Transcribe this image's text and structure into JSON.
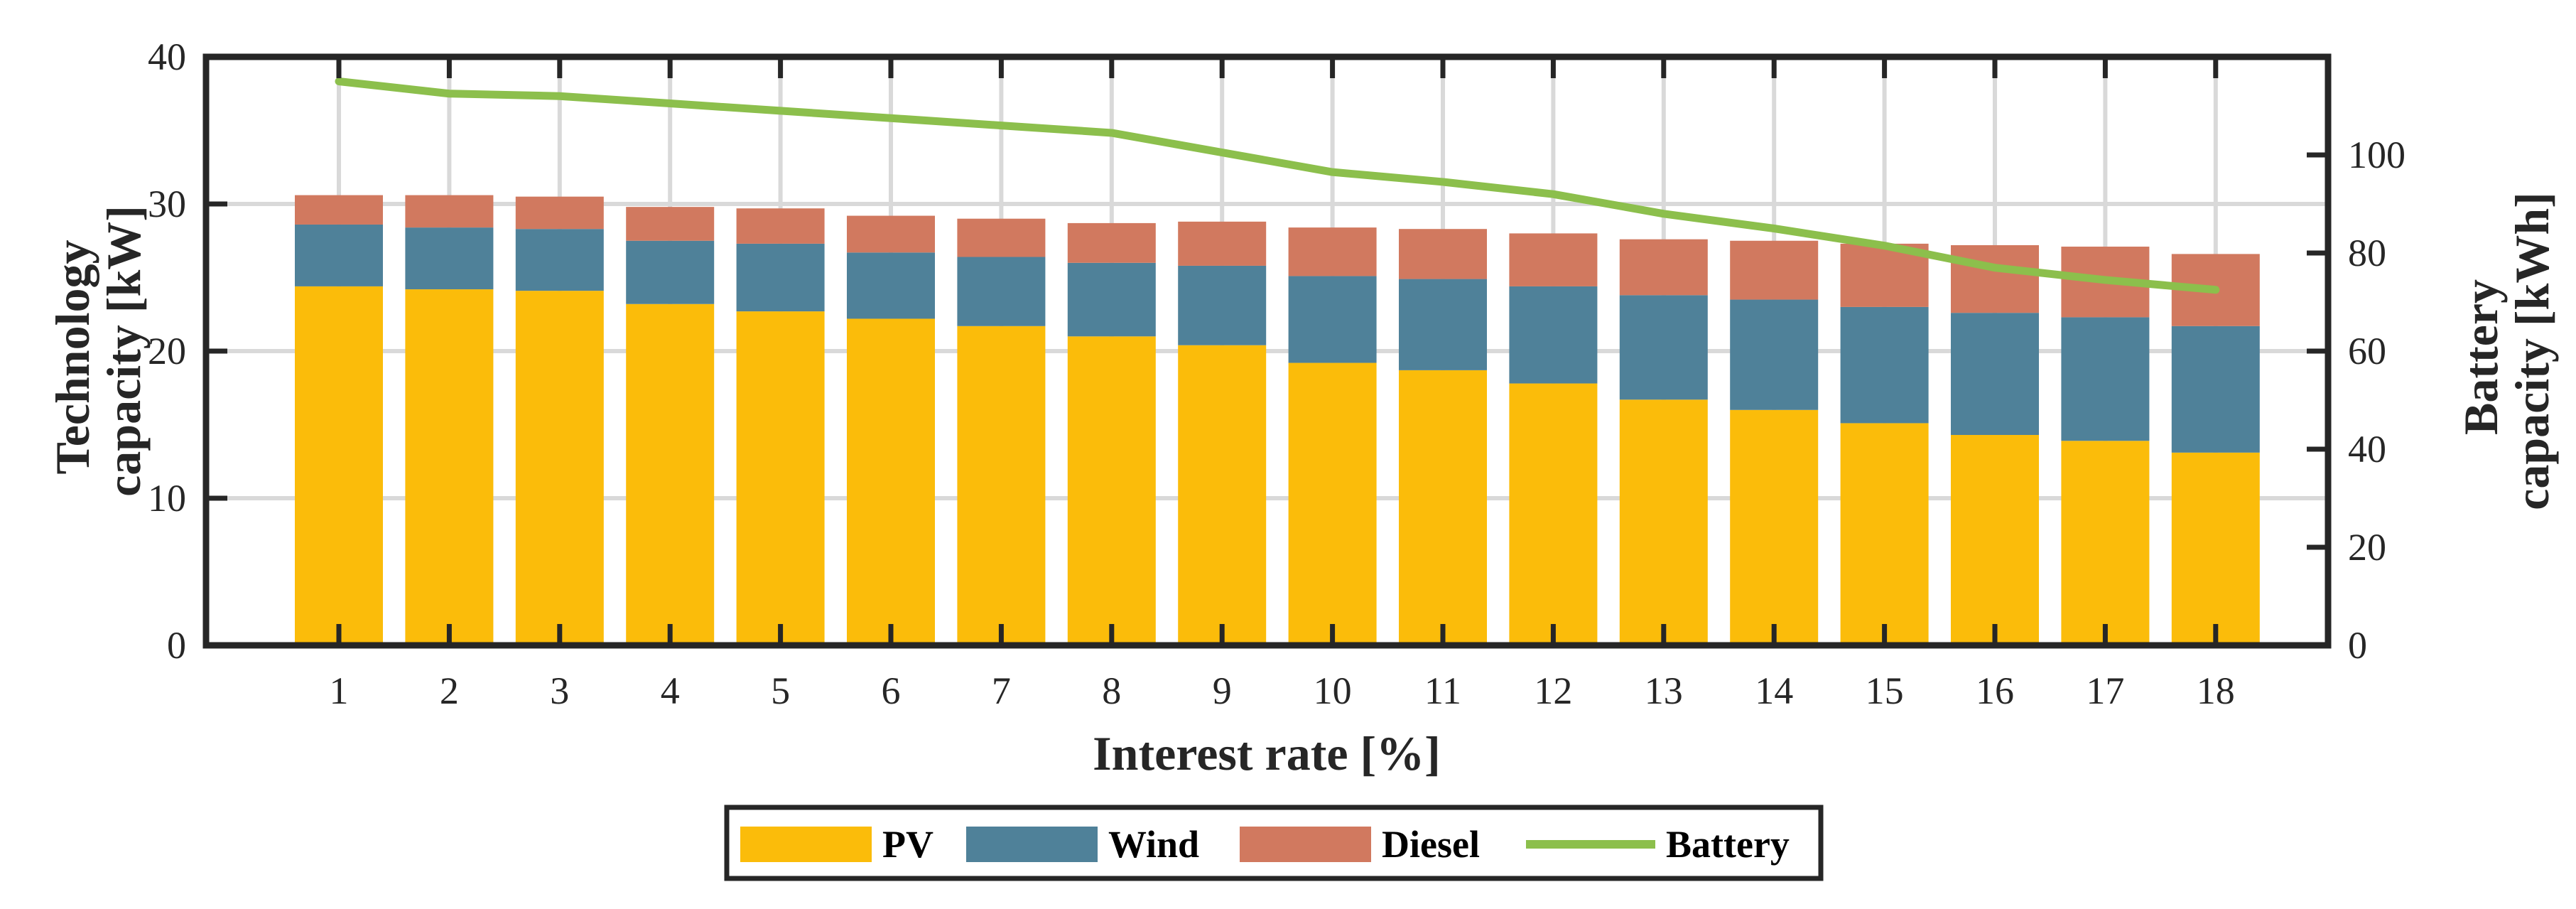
{
  "chart_data": {
    "type": "bar",
    "stacked": true,
    "title": "",
    "categories": [
      "1",
      "2",
      "3",
      "4",
      "5",
      "6",
      "7",
      "8",
      "9",
      "10",
      "11",
      "12",
      "13",
      "14",
      "15",
      "16",
      "17",
      "18"
    ],
    "xlabel": "Interest rate [%]",
    "ylabel_lines": [
      "Technology",
      "capacity [kW]"
    ],
    "y2label_lines": [
      "Battery",
      "capacity [kWh]"
    ],
    "ylim": [
      0,
      40
    ],
    "y2lim": [
      0,
      120
    ],
    "yticks": [
      0,
      10,
      20,
      30,
      40
    ],
    "y2ticks": [
      0,
      20,
      40,
      60,
      80,
      100
    ],
    "ytick_labels": [
      "0",
      "10",
      "20",
      "30",
      "40"
    ],
    "y2tick_labels": [
      "0",
      "20",
      "40",
      "60",
      "80",
      "100"
    ],
    "grid": true,
    "legend_position": "bottom-center",
    "series": [
      {
        "name": "PV",
        "axis": "left",
        "kind": "bar",
        "color": "#FBBC0A",
        "values": [
          24.4,
          24.2,
          24.1,
          23.2,
          22.7,
          22.2,
          21.7,
          21.0,
          20.4,
          19.2,
          18.7,
          17.8,
          16.7,
          16.0,
          15.1,
          14.3,
          13.9,
          13.1
        ]
      },
      {
        "name": "Wind",
        "axis": "left",
        "kind": "bar",
        "color": "#4F8199",
        "values": [
          4.2,
          4.2,
          4.2,
          4.3,
          4.6,
          4.5,
          4.7,
          5.0,
          5.4,
          5.9,
          6.2,
          6.6,
          7.1,
          7.5,
          7.9,
          8.3,
          8.4,
          8.6
        ]
      },
      {
        "name": "Diesel",
        "axis": "left",
        "kind": "bar",
        "color": "#D1795F",
        "values": [
          2.0,
          2.2,
          2.2,
          2.3,
          2.4,
          2.5,
          2.6,
          2.7,
          3.0,
          3.3,
          3.4,
          3.6,
          3.8,
          4.0,
          4.3,
          4.6,
          4.8,
          4.9
        ]
      },
      {
        "name": "Battery",
        "axis": "right",
        "kind": "line",
        "color": "#8CBF4C",
        "values": [
          115,
          112.5,
          112,
          110.5,
          109,
          107.5,
          106,
          104.5,
          100.5,
          96.5,
          94.5,
          92,
          88,
          85,
          81.5,
          77,
          74.5,
          72.5
        ]
      }
    ]
  }
}
